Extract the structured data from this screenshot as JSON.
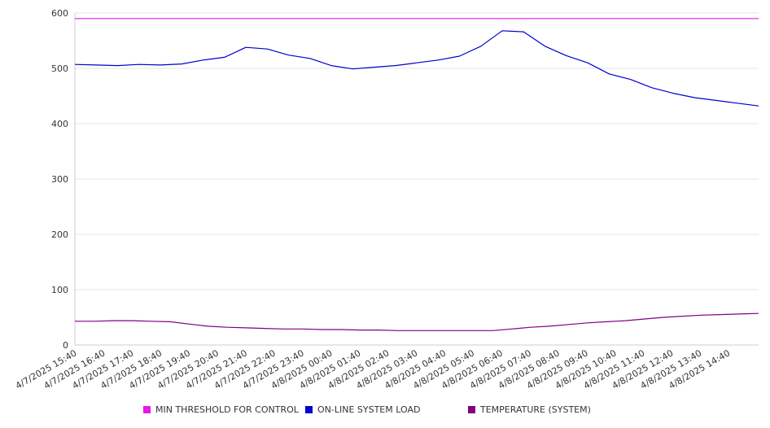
{
  "chart_data": {
    "type": "line",
    "title": "",
    "xlabel": "",
    "ylabel": "",
    "ylim": [
      0,
      600
    ],
    "yticks": [
      0,
      100,
      200,
      300,
      400,
      500,
      600
    ],
    "grid": "horizontal",
    "legend_position": "bottom",
    "x_tick_labels": [
      "4/7/2025 15:40",
      "4/7/2025 16:40",
      "4/7/2025 17:40",
      "4/7/2025 18:40",
      "4/7/2025 19:40",
      "4/7/2025 20:40",
      "4/7/2025 21:40",
      "4/7/2025 22:40",
      "4/7/2025 23:40",
      "4/8/2025 00:40",
      "4/8/2025 01:40",
      "4/8/2025 02:40",
      "4/8/2025 03:40",
      "4/8/2025 04:40",
      "4/8/2025 05:40",
      "4/8/2025 06:40",
      "4/8/2025 07:40",
      "4/8/2025 08:40",
      "4/8/2025 09:40",
      "4/8/2025 10:40",
      "4/8/2025 11:40",
      "4/8/2025 12:40",
      "4/8/2025 13:40",
      "4/8/2025 14:40"
    ],
    "series": [
      {
        "name": "MIN THRESHOLD FOR CONTROL",
        "color": "#e619e6",
        "values": [
          590,
          590,
          590,
          590,
          590,
          590,
          590,
          590,
          590,
          590,
          590,
          590,
          590,
          590,
          590,
          590,
          590,
          590,
          590,
          590,
          590,
          590,
          590,
          590,
          590
        ]
      },
      {
        "name": "ON-LINE SYSTEM LOAD",
        "color": "#0000cc",
        "values": [
          507,
          506,
          505,
          507,
          506,
          508,
          515,
          520,
          538,
          535,
          524,
          518,
          505,
          499,
          502,
          505,
          510,
          515,
          522,
          540,
          568,
          566,
          540,
          523,
          510,
          490,
          480,
          465,
          455,
          447,
          442,
          437,
          432
        ]
      },
      {
        "name": "TEMPERATURE (SYSTEM)",
        "color": "#800080",
        "values": [
          43,
          43,
          44,
          44,
          43,
          42,
          38,
          34,
          32,
          31,
          30,
          29,
          29,
          28,
          28,
          27,
          27,
          26,
          26,
          26,
          26,
          26,
          26,
          29,
          32,
          34,
          37,
          40,
          42,
          44,
          47,
          50,
          52,
          54,
          55,
          56,
          57
        ]
      }
    ]
  }
}
